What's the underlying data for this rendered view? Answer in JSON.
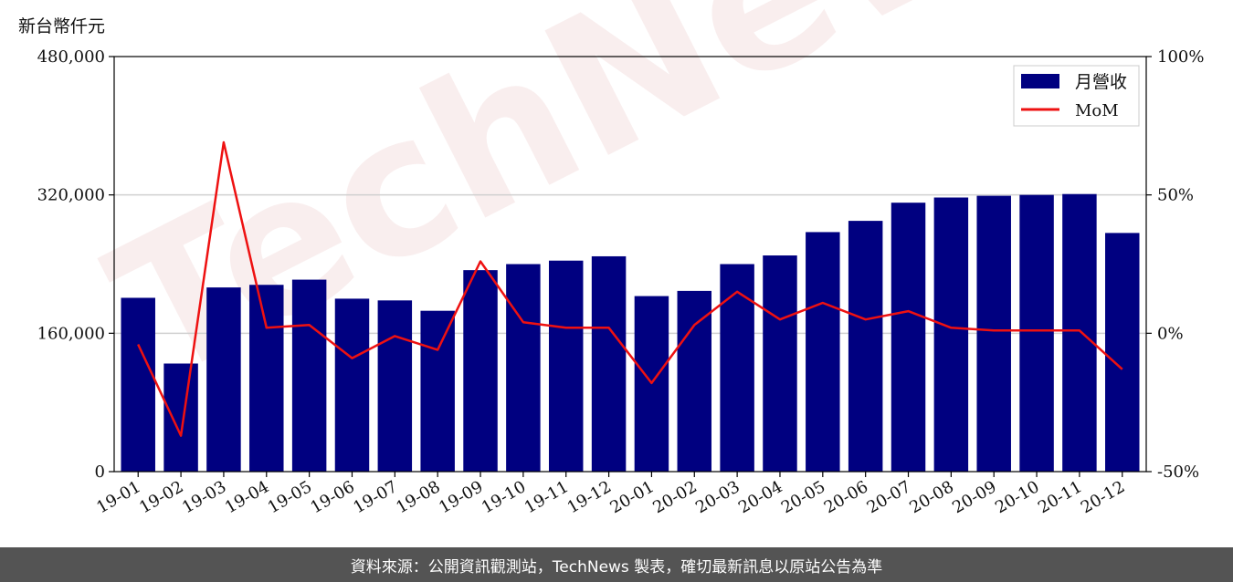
{
  "unit_label": "新台幣仟元",
  "watermark": "TechNews",
  "footer": "資料來源：公開資訊觀測站，TechNews 製表，確切最新訊息以原站公告為準",
  "colors": {
    "bar": "#000080",
    "line": "#ee1111",
    "footer_bg": "#545454"
  },
  "chart_data": {
    "type": "bar",
    "categories": [
      "19-01",
      "19-02",
      "19-03",
      "19-04",
      "19-05",
      "19-06",
      "19-07",
      "19-08",
      "19-09",
      "19-10",
      "19-11",
      "19-12",
      "20-01",
      "20-02",
      "20-03",
      "20-04",
      "20-05",
      "20-06",
      "20-07",
      "20-08",
      "20-09",
      "20-10",
      "20-11",
      "20-12"
    ],
    "series": [
      {
        "name": "月營收",
        "type": "bar",
        "axis": "left",
        "values": [
          201000,
          125000,
          213000,
          216000,
          222000,
          200000,
          198000,
          186000,
          233000,
          240000,
          244000,
          249000,
          203000,
          209000,
          240000,
          250000,
          277000,
          290000,
          311000,
          317000,
          319000,
          320000,
          321000,
          276000
        ]
      },
      {
        "name": "MoM",
        "type": "line",
        "axis": "right",
        "unit": "%",
        "values": [
          -4,
          -37,
          69,
          2,
          3,
          -9,
          -1,
          -6,
          26,
          4,
          2,
          2,
          -18,
          3,
          15,
          5,
          11,
          5,
          8,
          2,
          1,
          1,
          1,
          -13
        ]
      }
    ],
    "y_left": {
      "min": 0,
      "max": 480000,
      "ticks": [
        "0",
        "160,000",
        "320,000",
        "480,000"
      ]
    },
    "y_right": {
      "min": -50,
      "max": 100,
      "ticks": [
        "-50%",
        "0%",
        "50%",
        "100%"
      ]
    },
    "grid": "horizontal",
    "legend": "top-right"
  }
}
